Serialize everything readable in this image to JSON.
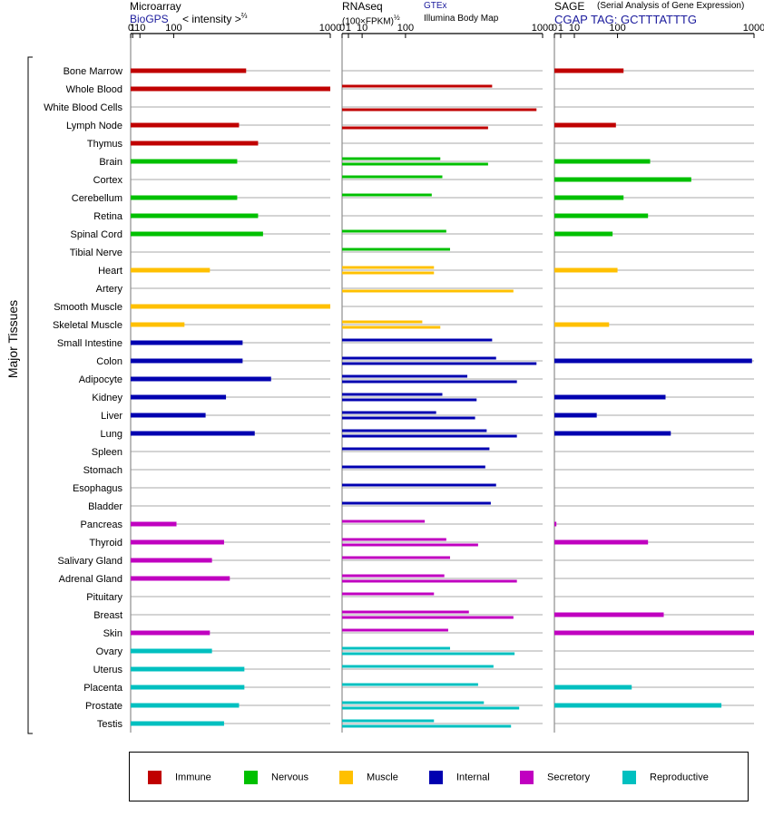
{
  "titles": {
    "microarray": "Microarray",
    "biogps": "BioGPS",
    "intensity": "< intensity >",
    "intensity_exp": "⅔",
    "rnaseq": "RNAseq",
    "fpkm": "(100×FPKM)",
    "fpkm_exp": "½",
    "gtex": "GTEx",
    "illumina": "Illumina Body Map",
    "sage": "SAGE",
    "sage_desc": "(Serial Analysis of Gene Expression)",
    "cgap": "CGAP TAG: GCTTTATTTG",
    "major_tissues": "Major Tissues"
  },
  "legend": [
    {
      "label": "Immune",
      "color": "#c00000"
    },
    {
      "label": "Nervous",
      "color": "#00c000"
    },
    {
      "label": "Muscle",
      "color": "#ffc000"
    },
    {
      "label": "Internal",
      "color": "#0000b0"
    },
    {
      "label": "Secretory",
      "color": "#c000c0"
    },
    {
      "label": "Reproductive",
      "color": "#00c0c0"
    }
  ],
  "chart_data": {
    "type": "bar",
    "scale": "power (microarray ⅔, RNAseq ½)",
    "tick_labels": [
      "0",
      "1",
      "10",
      "100",
      "1000"
    ],
    "ticks": [
      0,
      1,
      10,
      100,
      1000
    ],
    "categories": [
      "Bone Marrow",
      "Whole Blood",
      "White Blood Cells",
      "Lymph Node",
      "Thymus",
      "Brain",
      "Cortex",
      "Cerebellum",
      "Retina",
      "Spinal Cord",
      "Tibial Nerve",
      "Heart",
      "Artery",
      "Smooth Muscle",
      "Skeletal Muscle",
      "Small Intestine",
      "Colon",
      "Adipocyte",
      "Kidney",
      "Liver",
      "Lung",
      "Spleen",
      "Stomach",
      "Esophagus",
      "Bladder",
      "Pancreas",
      "Thyroid",
      "Salivary Gland",
      "Adrenal Gland",
      "Pituitary",
      "Breast",
      "Skin",
      "Ovary",
      "Uterus",
      "Placenta",
      "Prostate",
      "Testis"
    ],
    "groups": [
      "Immune",
      "Immune",
      "Immune",
      "Immune",
      "Immune",
      "Nervous",
      "Nervous",
      "Nervous",
      "Nervous",
      "Nervous",
      "Nervous",
      "Muscle",
      "Muscle",
      "Muscle",
      "Muscle",
      "Internal",
      "Internal",
      "Internal",
      "Internal",
      "Internal",
      "Internal",
      "Internal",
      "Internal",
      "Internal",
      "Internal",
      "Secretory",
      "Secretory",
      "Secretory",
      "Secretory",
      "Secretory",
      "Secretory",
      "Secretory",
      "Reproductive",
      "Reproductive",
      "Reproductive",
      "Reproductive",
      "Reproductive"
    ],
    "microarray": [
      440,
      1200,
      null,
      400,
      510,
      390,
      null,
      390,
      510,
      540,
      null,
      250,
      null,
      1150,
      140,
      420,
      420,
      590,
      330,
      230,
      490,
      null,
      null,
      null,
      null,
      110,
      320,
      260,
      350,
      null,
      null,
      250,
      260,
      430,
      430,
      400,
      320
    ],
    "rnaseq_gtex": [
      null,
      560,
      null,
      null,
      null,
      240,
      250,
      200,
      null,
      270,
      290,
      210,
      null,
      null,
      160,
      560,
      590,
      390,
      250,
      220,
      520,
      540,
      510,
      590,
      550,
      170,
      270,
      290,
      260,
      210,
      400,
      280,
      290,
      570,
      460,
      500,
      210
    ],
    "rnaseq_ibm": [
      null,
      null,
      940,
      530,
      null,
      530,
      null,
      null,
      null,
      null,
      null,
      210,
      730,
      null,
      240,
      null,
      940,
      760,
      450,
      440,
      760,
      null,
      null,
      null,
      null,
      null,
      460,
      null,
      760,
      null,
      730,
      null,
      740,
      null,
      null,
      780,
      710
    ],
    "sage": [
      120,
      null,
      null,
      95,
      null,
      230,
      470,
      120,
      220,
      85,
      null,
      100,
      null,
      null,
      75,
      null,
      980,
      null,
      310,
      45,
      340,
      null,
      null,
      null,
      null,
      0.1,
      220,
      null,
      null,
      null,
      300,
      1100,
      null,
      null,
      150,
      700,
      null
    ],
    "xlim_microarray": [
      0,
      1000
    ],
    "xlim_rnaseq": [
      0,
      1000
    ],
    "xlim_sage": [
      0,
      1000
    ]
  }
}
